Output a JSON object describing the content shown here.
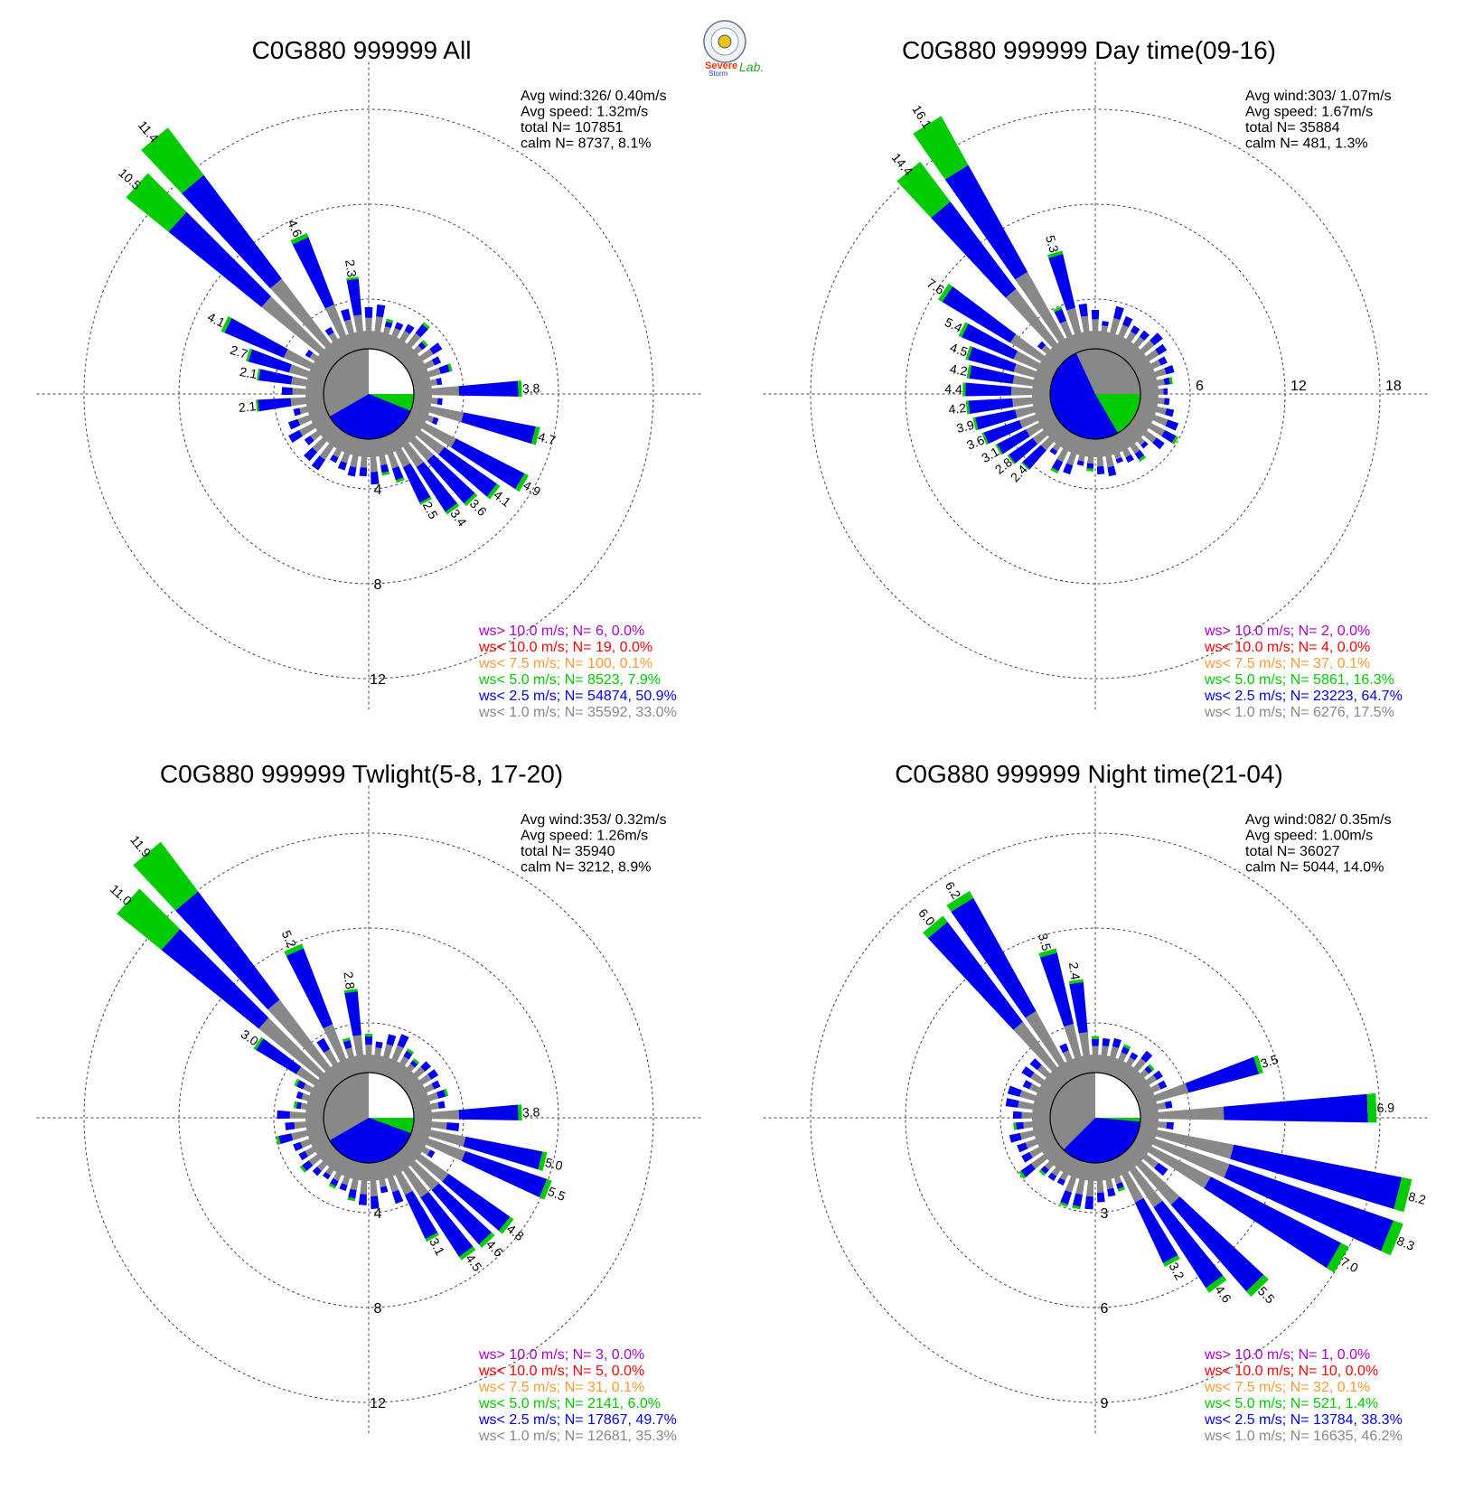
{
  "logo": {
    "text_s1": "Severe",
    "text_s2": "Storm",
    "text_lab": "Lab."
  },
  "colors": {
    "calm": "#888888",
    "c1": "#888888",
    "c2": "#0000ee",
    "c3": "#00cc00",
    "c4": "#ff9933",
    "c5": "#ff0000",
    "c6": "#aa00cc",
    "grid": "#444444",
    "text": "#000000"
  },
  "chart_data": [
    {
      "type": "polar-bar",
      "title": "C0G880 999999 All",
      "rings": [
        4,
        8,
        12
      ],
      "stats": {
        "avg_wind": "Avg wind:326/ 0.40m/s",
        "avg_speed": "Avg speed: 1.32m/s",
        "total": "total N=    107851",
        "calm": "calm N=   8737,   8.1%"
      },
      "legend": [
        {
          "label": "ws> 10.0 m/s; N=    6,  0.0%",
          "color": "#aa00cc"
        },
        {
          "label": "ws< 10.0 m/s; N=   19,  0.0%",
          "color": "#ff0000"
        },
        {
          "label": "ws<  7.5 m/s; N=  100,  0.1%",
          "color": "#ff9933"
        },
        {
          "label": "ws<  5.0 m/s; N=  8523,  7.9%",
          "color": "#00cc00"
        },
        {
          "label": "ws<  2.5 m/s; N= 54874, 50.9%",
          "color": "#0000ee"
        },
        {
          "label": "ws<  1.0 m/s; N= 35592, 33.0%",
          "color": "#888888"
        }
      ],
      "pie": [
        {
          "from": 0,
          "to": 90,
          "color": "#ffffff"
        },
        {
          "from": 90,
          "to": 112,
          "color": "#00cc00"
        },
        {
          "from": 112,
          "to": 240,
          "color": "#0000ee"
        },
        {
          "from": 240,
          "to": 360,
          "color": "#888888"
        }
      ],
      "petals": [
        {
          "dir": 320,
          "total": 11.4,
          "label": "11.4"
        },
        {
          "dir": 312,
          "total": 10.5,
          "label": "10.5"
        },
        {
          "dir": 336,
          "total": 4.6,
          "label": "4.6"
        },
        {
          "dir": 296,
          "total": 4.1,
          "label": "4.1"
        },
        {
          "dir": 352,
          "total": 2.3,
          "label": "2.3"
        },
        {
          "dir": 288,
          "total": 2.7,
          "label": "2.7"
        },
        {
          "dir": 280,
          "total": 2.1,
          "label": "2.1"
        },
        {
          "dir": 264,
          "total": 2.1,
          "label": "2.1"
        },
        {
          "dir": 88,
          "total": 3.8,
          "label": "3.8"
        },
        {
          "dir": 104,
          "total": 4.7,
          "label": "4.7"
        },
        {
          "dir": 120,
          "total": 4.9,
          "label": "4.9"
        },
        {
          "dir": 128,
          "total": 4.1,
          "label": "4.1"
        },
        {
          "dir": 136,
          "total": 3.6,
          "label": "3.6"
        },
        {
          "dir": 144,
          "total": 3.4,
          "label": "3.4"
        },
        {
          "dir": 152,
          "total": 2.5,
          "label": "2.5"
        }
      ]
    },
    {
      "type": "polar-bar",
      "title": "C0G880 999999 Day time(09-16)",
      "rings": [
        6,
        12,
        18
      ],
      "stats": {
        "avg_wind": "Avg wind:303/ 1.07m/s",
        "avg_speed": "Avg speed: 1.67m/s",
        "total": "total N=     35884",
        "calm": "calm N=    481,   1.3%"
      },
      "legend": [
        {
          "label": "ws> 10.0 m/s; N=    2,  0.0%",
          "color": "#aa00cc"
        },
        {
          "label": "ws< 10.0 m/s; N=    4,  0.0%",
          "color": "#ff0000"
        },
        {
          "label": "ws<  7.5 m/s; N=   37,  0.1%",
          "color": "#ff9933"
        },
        {
          "label": "ws<  5.0 m/s; N=  5861, 16.3%",
          "color": "#00cc00"
        },
        {
          "label": "ws<  2.5 m/s; N= 23223, 64.7%",
          "color": "#0000ee"
        },
        {
          "label": "ws<  1.0 m/s; N=  6276, 17.5%",
          "color": "#888888"
        }
      ],
      "pie": [
        {
          "from": 0,
          "to": 90,
          "color": "#888888"
        },
        {
          "from": 90,
          "to": 150,
          "color": "#00cc00"
        },
        {
          "from": 150,
          "to": 335,
          "color": "#0000ee"
        },
        {
          "from": 335,
          "to": 360,
          "color": "#888888"
        }
      ],
      "petals": [
        {
          "dir": 328,
          "total": 16.1,
          "label": "16.1"
        },
        {
          "dir": 320,
          "total": 14.4,
          "label": "14.4"
        },
        {
          "dir": 344,
          "total": 5.3,
          "label": "5.3"
        },
        {
          "dir": 304,
          "total": 7.6,
          "label": "7.6"
        },
        {
          "dir": 296,
          "total": 5.4,
          "label": "5.4"
        },
        {
          "dir": 288,
          "total": 4.5,
          "label": "4.5"
        },
        {
          "dir": 280,
          "total": 4.2,
          "label": "4.2"
        },
        {
          "dir": 272,
          "total": 4.4,
          "label": "4.4"
        },
        {
          "dir": 264,
          "total": 4.2,
          "label": "4.2"
        },
        {
          "dir": 256,
          "total": 3.9,
          "label": "3.9"
        },
        {
          "dir": 248,
          "total": 3.6,
          "label": "3.6"
        },
        {
          "dir": 240,
          "total": 3.1,
          "label": "3.1"
        },
        {
          "dir": 232,
          "total": 2.8,
          "label": "2.8"
        },
        {
          "dir": 224,
          "total": 2.4,
          "label": "2.4"
        }
      ]
    },
    {
      "type": "polar-bar",
      "title": "C0G880 999999 Twlight(5-8, 17-20)",
      "rings": [
        4,
        8,
        12
      ],
      "stats": {
        "avg_wind": "Avg wind:353/ 0.32m/s",
        "avg_speed": "Avg speed: 1.26m/s",
        "total": "total N=     35940",
        "calm": "calm N=   3212,   8.9%"
      },
      "legend": [
        {
          "label": "ws> 10.0 m/s; N=    3,  0.0%",
          "color": "#aa00cc"
        },
        {
          "label": "ws< 10.0 m/s; N=    5,  0.0%",
          "color": "#ff0000"
        },
        {
          "label": "ws<  7.5 m/s; N=   31,  0.1%",
          "color": "#ff9933"
        },
        {
          "label": "ws<  5.0 m/s; N=  2141,  6.0%",
          "color": "#00cc00"
        },
        {
          "label": "ws<  2.5 m/s; N= 17867, 49.7%",
          "color": "#0000ee"
        },
        {
          "label": "ws<  1.0 m/s; N= 12681, 35.3%",
          "color": "#888888"
        }
      ],
      "pie": [
        {
          "from": 0,
          "to": 90,
          "color": "#ffffff"
        },
        {
          "from": 90,
          "to": 110,
          "color": "#00cc00"
        },
        {
          "from": 110,
          "to": 240,
          "color": "#0000ee"
        },
        {
          "from": 240,
          "to": 360,
          "color": "#888888"
        }
      ],
      "petals": [
        {
          "dir": 320,
          "total": 11.9,
          "label": "11.9"
        },
        {
          "dir": 312,
          "total": 11.0,
          "label": "11.0"
        },
        {
          "dir": 336,
          "total": 5.2,
          "label": "5.2"
        },
        {
          "dir": 352,
          "total": 2.8,
          "label": "2.8"
        },
        {
          "dir": 304,
          "total": 3.0,
          "label": "3.0"
        },
        {
          "dir": 88,
          "total": 3.8,
          "label": "3.8"
        },
        {
          "dir": 104,
          "total": 5.0,
          "label": "5.0"
        },
        {
          "dir": 112,
          "total": 5.5,
          "label": "5.5"
        },
        {
          "dir": 128,
          "total": 4.8,
          "label": "4.8"
        },
        {
          "dir": 136,
          "total": 4.6,
          "label": "4.6"
        },
        {
          "dir": 144,
          "total": 4.5,
          "label": "4.5"
        },
        {
          "dir": 152,
          "total": 3.1,
          "label": "3.1"
        }
      ]
    },
    {
      "type": "polar-bar",
      "title": "C0G880 999999 Night time(21-04)",
      "rings": [
        3,
        6,
        9
      ],
      "stats": {
        "avg_wind": "Avg wind:082/ 0.35m/s",
        "avg_speed": "Avg speed: 1.00m/s",
        "total": "total N=     36027",
        "calm": "calm N=   5044,  14.0%"
      },
      "legend": [
        {
          "label": "ws> 10.0 m/s; N=    1,  0.0%",
          "color": "#aa00cc"
        },
        {
          "label": "ws< 10.0 m/s; N=   10,  0.0%",
          "color": "#ff0000"
        },
        {
          "label": "ws<  7.5 m/s; N=   32,  0.1%",
          "color": "#ff9933"
        },
        {
          "label": "ws<  5.0 m/s; N=   521,  1.4%",
          "color": "#00cc00"
        },
        {
          "label": "ws<  2.5 m/s; N= 13784, 38.3%",
          "color": "#0000ee"
        },
        {
          "label": "ws<  1.0 m/s; N= 16635, 46.2%",
          "color": "#888888"
        }
      ],
      "pie": [
        {
          "from": 0,
          "to": 90,
          "color": "#ffffff"
        },
        {
          "from": 90,
          "to": 95,
          "color": "#00cc00"
        },
        {
          "from": 95,
          "to": 225,
          "color": "#0000ee"
        },
        {
          "from": 225,
          "to": 360,
          "color": "#888888"
        }
      ],
      "petals": [
        {
          "dir": 328,
          "total": 6.2,
          "label": "6.2"
        },
        {
          "dir": 320,
          "total": 6.0,
          "label": "6.0"
        },
        {
          "dir": 344,
          "total": 3.5,
          "label": "3.5"
        },
        {
          "dir": 352,
          "total": 2.4,
          "label": "2.4"
        },
        {
          "dir": 72,
          "total": 3.5,
          "label": "3.5"
        },
        {
          "dir": 88,
          "total": 6.9,
          "label": "6.9"
        },
        {
          "dir": 104,
          "total": 8.2,
          "label": "8.2"
        },
        {
          "dir": 112,
          "total": 8.3,
          "label": "8.3"
        },
        {
          "dir": 120,
          "total": 7.0,
          "label": "7.0"
        },
        {
          "dir": 136,
          "total": 5.5,
          "label": "5.5"
        },
        {
          "dir": 144,
          "total": 4.6,
          "label": "4.6"
        },
        {
          "dir": 152,
          "total": 3.2,
          "label": "3.2"
        }
      ]
    }
  ]
}
